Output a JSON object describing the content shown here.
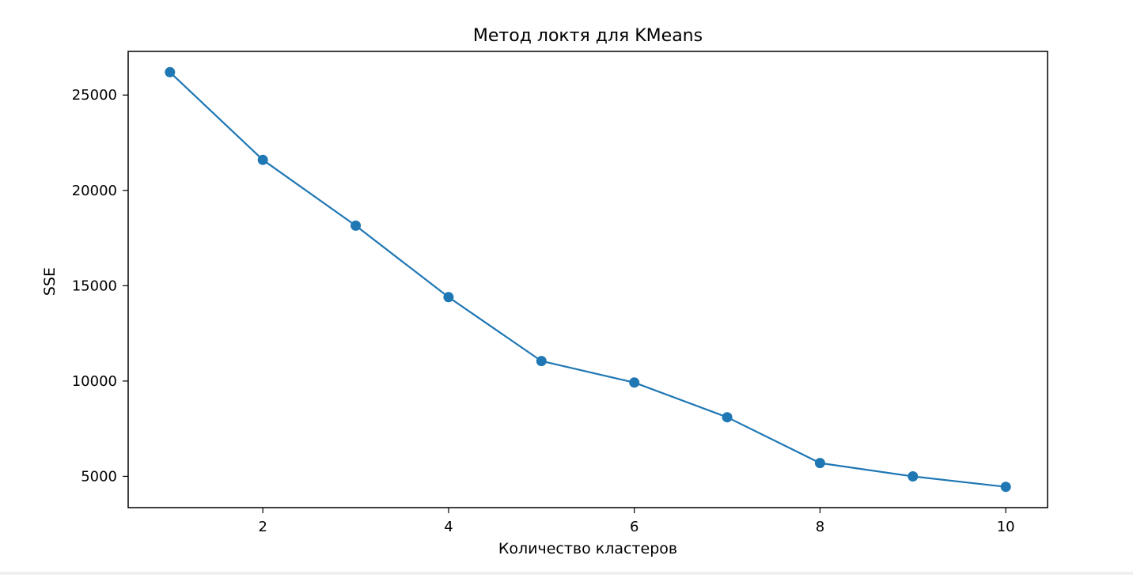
{
  "chart_data": {
    "type": "line",
    "title": "Метод локтя для KMeans",
    "xlabel": "Количество кластеров",
    "ylabel": "SSE",
    "x": [
      1,
      2,
      3,
      4,
      5,
      6,
      7,
      8,
      9,
      10
    ],
    "series": [
      {
        "values": [
          26200,
          21600,
          18150,
          14400,
          11050,
          9920,
          8100,
          5700,
          5000,
          4450
        ],
        "color": "#1f77b4",
        "marker": "circle"
      }
    ],
    "xticks": [
      2,
      4,
      6,
      8,
      10
    ],
    "yticks": [
      5000,
      10000,
      15000,
      20000,
      25000
    ],
    "xlim": [
      0.55,
      10.45
    ],
    "ylim": [
      3360,
      27290
    ],
    "grid": false,
    "legend": false
  }
}
